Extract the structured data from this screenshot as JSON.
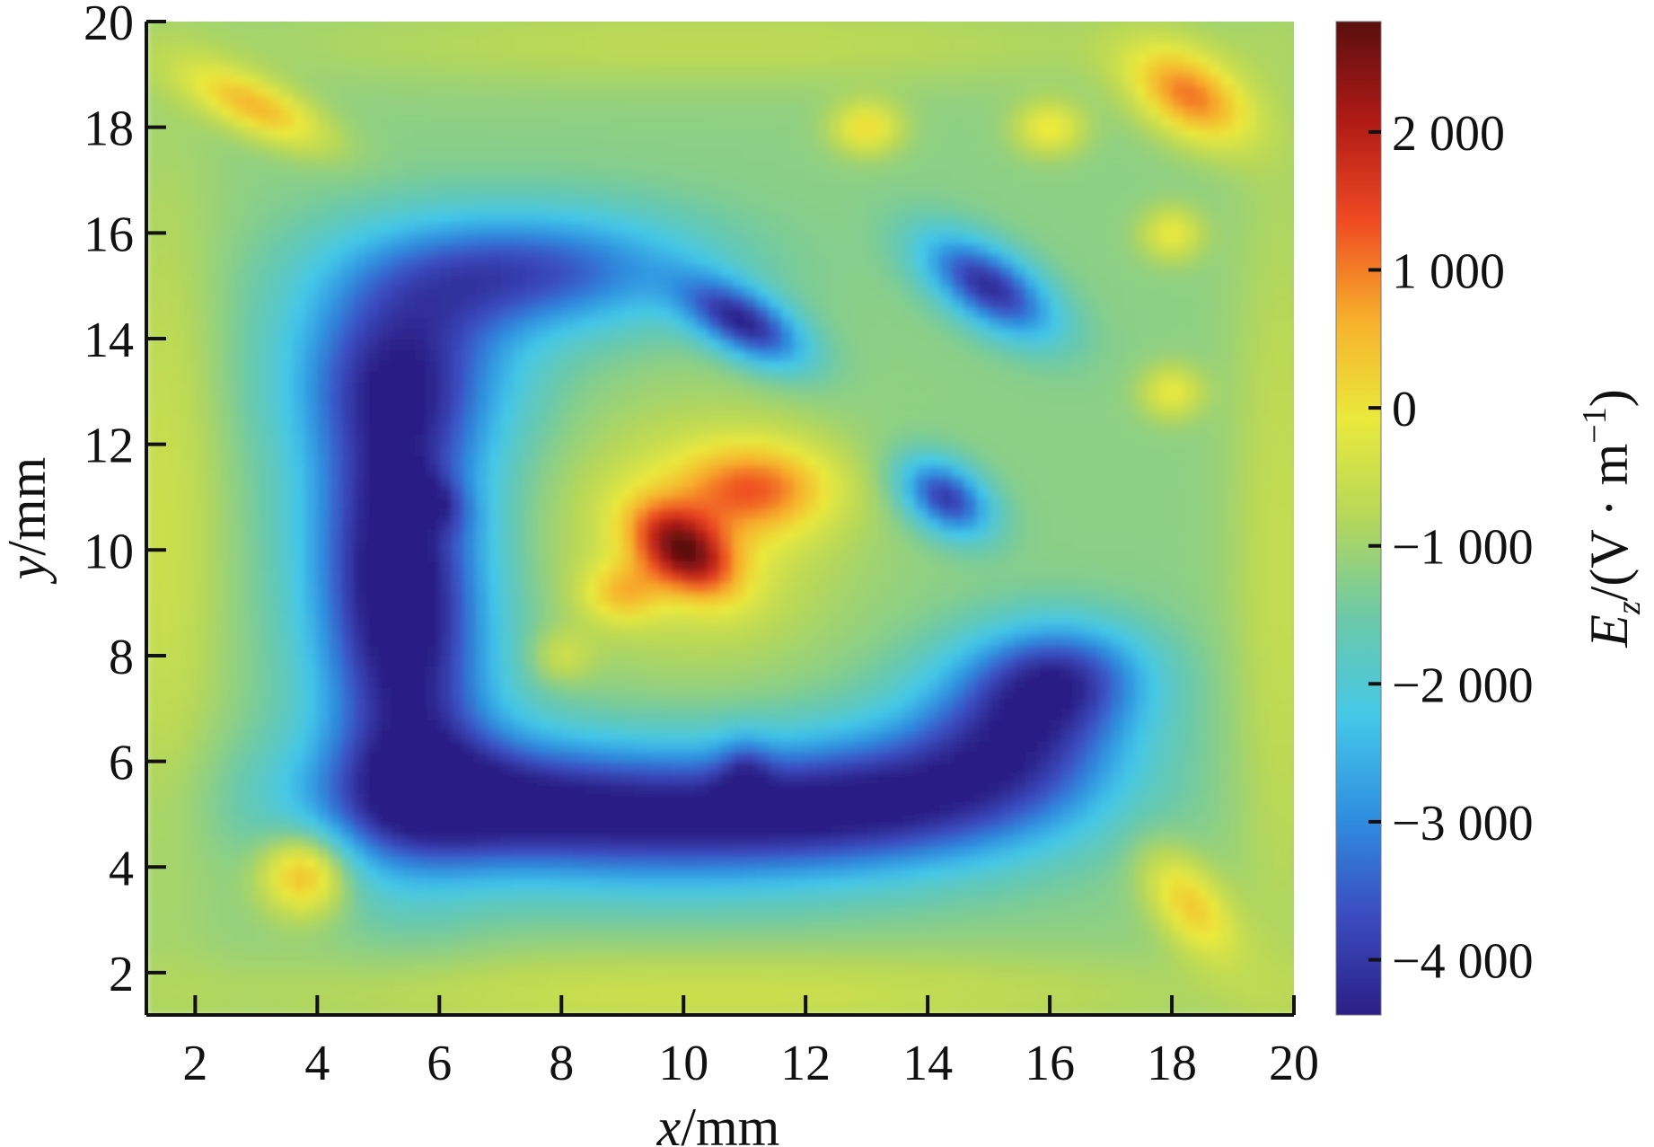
{
  "chart_data": {
    "type": "heatmap",
    "title": "",
    "xlabel": {
      "var": "x",
      "unit": "/mm"
    },
    "ylabel": {
      "var": "y",
      "unit": "/mm"
    },
    "colorbar_label": {
      "var": "E",
      "sub": "z",
      "unit_open": "/(V · m",
      "unit_sup": "−1",
      "unit_close": ")"
    },
    "xlim": [
      1.2,
      20
    ],
    "ylim": [
      1.2,
      20
    ],
    "x_ticks": [
      2,
      4,
      6,
      8,
      10,
      12,
      14,
      16,
      18,
      20
    ],
    "y_ticks": [
      2,
      4,
      6,
      8,
      10,
      12,
      14,
      16,
      18,
      20
    ],
    "clim": [
      -4400,
      2800
    ],
    "colorbar_ticks": [
      {
        "value": 2000,
        "label": "2 000"
      },
      {
        "value": 1000,
        "label": "1 000"
      },
      {
        "value": 0,
        "label": "0"
      },
      {
        "value": -1000,
        "label": "−1 000"
      },
      {
        "value": -2000,
        "label": "−2 000"
      },
      {
        "value": -3000,
        "label": "−3 000"
      },
      {
        "value": -4000,
        "label": "−4 000"
      }
    ],
    "colormap": [
      "#2b1f86",
      "#3b4cc0",
      "#2f8fe0",
      "#44c8e8",
      "#6cc9a8",
      "#b5d75a",
      "#eae93c",
      "#f7b02c",
      "#ef4a22",
      "#b01a16",
      "#5a0f0f"
    ],
    "field": {
      "background": -1200,
      "blobs": [
        {
          "cx": 10.0,
          "cy": 10.0,
          "sx": 0.7,
          "sy": 0.45,
          "rot": -45,
          "amp": 3000
        },
        {
          "cx": 11.2,
          "cy": 11.2,
          "sx": 0.9,
          "sy": 0.6,
          "rot": 0,
          "amp": 1800
        },
        {
          "cx": 9.0,
          "cy": 9.2,
          "sx": 0.45,
          "sy": 0.4,
          "rot": 0,
          "amp": 1200
        },
        {
          "cx": 10.2,
          "cy": 10.3,
          "sx": 1.6,
          "sy": 1.6,
          "rot": 0,
          "amp": 1000
        },
        {
          "cx": 18.3,
          "cy": 18.6,
          "sx": 0.8,
          "sy": 0.5,
          "rot": -40,
          "amp": 2200
        },
        {
          "cx": 3.8,
          "cy": 3.9,
          "sx": 0.5,
          "sy": 0.55,
          "rot": 0,
          "amp": 2000
        },
        {
          "cx": 3.0,
          "cy": 18.4,
          "sx": 0.9,
          "sy": 0.35,
          "rot": -30,
          "amp": 1700
        },
        {
          "cx": 18.3,
          "cy": 3.3,
          "sx": 0.4,
          "sy": 0.8,
          "rot": 30,
          "amp": 1500
        },
        {
          "cx": 13.0,
          "cy": 18.0,
          "sx": 0.4,
          "sy": 0.35,
          "rot": 0,
          "amp": 1300
        },
        {
          "cx": 16.0,
          "cy": 18.0,
          "sx": 0.4,
          "sy": 0.35,
          "rot": 0,
          "amp": 1200
        },
        {
          "cx": 18.0,
          "cy": 16.0,
          "sx": 0.35,
          "sy": 0.35,
          "rot": 0,
          "amp": 1100
        },
        {
          "cx": 18.0,
          "cy": 13.0,
          "sx": 0.35,
          "sy": 0.35,
          "rot": 0,
          "amp": 1100
        },
        {
          "cx": 8.0,
          "cy": 8.0,
          "sx": 0.35,
          "sy": 0.35,
          "rot": 0,
          "amp": 700
        },
        {
          "cx": 1.5,
          "cy": 10.5,
          "sx": 0.7,
          "sy": 5.0,
          "rot": 0,
          "amp": 700
        },
        {
          "cx": 10.5,
          "cy": 1.6,
          "sx": 6.0,
          "sy": 0.6,
          "rot": 0,
          "amp": 700
        },
        {
          "cx": 19.8,
          "cy": 9.5,
          "sx": 0.6,
          "sy": 6.0,
          "rot": 0,
          "amp": 600
        },
        {
          "cx": 10.5,
          "cy": 19.6,
          "sx": 6.0,
          "sy": 0.6,
          "rot": 0,
          "amp": 500
        },
        {
          "cx": 6.5,
          "cy": 5.3,
          "sx": 2.0,
          "sy": 0.9,
          "rot": 0,
          "amp": -2400
        },
        {
          "cx": 10.0,
          "cy": 4.9,
          "sx": 2.4,
          "sy": 0.9,
          "rot": 0,
          "amp": -2500
        },
        {
          "cx": 13.5,
          "cy": 5.3,
          "sx": 2.0,
          "sy": 0.9,
          "rot": 0,
          "amp": -2400
        },
        {
          "cx": 15.5,
          "cy": 6.6,
          "sx": 1.3,
          "sy": 1.0,
          "rot": 0,
          "amp": -2400
        },
        {
          "cx": 16.2,
          "cy": 7.7,
          "sx": 1.0,
          "sy": 0.7,
          "rot": 0,
          "amp": -2000
        },
        {
          "cx": 5.5,
          "cy": 7.5,
          "sx": 1.0,
          "sy": 2.2,
          "rot": 0,
          "amp": -2500
        },
        {
          "cx": 5.2,
          "cy": 10.5,
          "sx": 1.0,
          "sy": 2.0,
          "rot": 0,
          "amp": -2500
        },
        {
          "cx": 5.4,
          "cy": 13.5,
          "sx": 1.3,
          "sy": 1.3,
          "rot": 0,
          "amp": -2400
        },
        {
          "cx": 7.5,
          "cy": 15.3,
          "sx": 1.9,
          "sy": 0.8,
          "rot": 0,
          "amp": -2400
        },
        {
          "cx": 5.8,
          "cy": 11.0,
          "sx": 0.5,
          "sy": 0.3,
          "rot": -30,
          "amp": -900
        },
        {
          "cx": 11.0,
          "cy": 5.8,
          "sx": 0.3,
          "sy": 0.5,
          "rot": 0,
          "amp": -900
        },
        {
          "cx": 11.0,
          "cy": 14.3,
          "sx": 0.8,
          "sy": 0.4,
          "rot": -35,
          "amp": -3000
        },
        {
          "cx": 15.0,
          "cy": 15.0,
          "sx": 0.9,
          "sy": 0.45,
          "rot": -40,
          "amp": -3000
        },
        {
          "cx": 14.3,
          "cy": 11.0,
          "sx": 0.6,
          "sy": 0.4,
          "rot": -45,
          "amp": -2800
        }
      ]
    }
  }
}
